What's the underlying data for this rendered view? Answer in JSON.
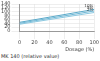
{
  "chart_data": {
    "type": "line",
    "y_label": "MK 140 (relative value)",
    "x_label": "Dosage (%)",
    "x": [
      0,
      100
    ],
    "series": [
      {
        "name": "10%",
        "color": "#5aa9c9",
        "values": [
          45,
          112
        ]
      },
      {
        "name": "5%",
        "color": "#6fb8d6",
        "values": [
          40,
          104
        ]
      },
      {
        "name": "2%",
        "color": "#8cc8e0",
        "values": [
          35,
          96
        ]
      }
    ],
    "xlim": [
      0,
      100
    ],
    "xticks": [
      0,
      20,
      40,
      60,
      80,
      100
    ],
    "ylim": [
      0,
      140
    ],
    "yticks": [
      0,
      20,
      40,
      60,
      80,
      100,
      120,
      140
    ],
    "grid": true
  }
}
